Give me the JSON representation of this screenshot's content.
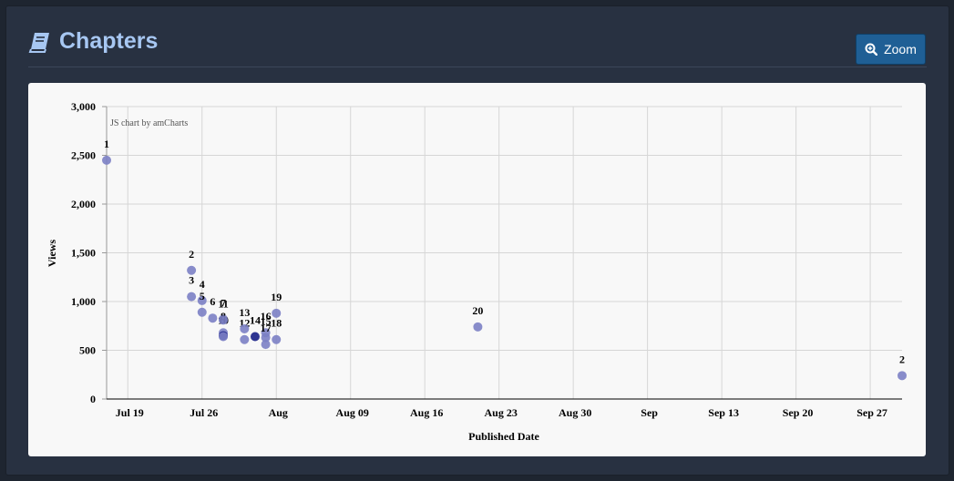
{
  "header": {
    "title": "Chapters",
    "icon": "book-icon"
  },
  "toolbar": {
    "zoom_label": "Zoom",
    "zoom_icon": "zoom-in-icon"
  },
  "chart_data": {
    "type": "scatter",
    "title": "",
    "credit": "JS chart by amCharts",
    "xlabel": "Published Date",
    "ylabel": "Views",
    "x_range": [
      "2014-07-17",
      "2014-09-30"
    ],
    "ylim": [
      0,
      3000
    ],
    "yticks": [
      {
        "value": 0,
        "label": "0"
      },
      {
        "value": 500,
        "label": "500"
      },
      {
        "value": 1000,
        "label": "1,000"
      },
      {
        "value": 1500,
        "label": "1,500"
      },
      {
        "value": 2000,
        "label": "2,000"
      },
      {
        "value": 2500,
        "label": "2,500"
      },
      {
        "value": 3000,
        "label": "3,000"
      }
    ],
    "xticks": [
      {
        "date": "2014-07-19",
        "label": "Jul 19"
      },
      {
        "date": "2014-07-26",
        "label": "Jul 26"
      },
      {
        "date": "2014-08-02",
        "label": "Aug"
      },
      {
        "date": "2014-08-09",
        "label": "Aug 09"
      },
      {
        "date": "2014-08-16",
        "label": "Aug 16"
      },
      {
        "date": "2014-08-23",
        "label": "Aug 23"
      },
      {
        "date": "2014-08-30",
        "label": "Aug 30"
      },
      {
        "date": "2014-09-06",
        "label": "Sep"
      },
      {
        "date": "2014-09-13",
        "label": "Sep 13"
      },
      {
        "date": "2014-09-20",
        "label": "Sep 20"
      },
      {
        "date": "2014-09-27",
        "label": "Sep 27"
      }
    ],
    "grid": true,
    "point_color": "#7b7fc4",
    "highlight_color": "#232a8c",
    "points": [
      {
        "label": "1",
        "date": "2014-07-17",
        "y": 2450,
        "highlight": false
      },
      {
        "label": "2",
        "date": "2014-07-25",
        "y": 1320,
        "highlight": false
      },
      {
        "label": "3",
        "date": "2014-07-25",
        "y": 1050,
        "highlight": false
      },
      {
        "label": "4",
        "date": "2014-07-26",
        "y": 1010,
        "highlight": false
      },
      {
        "label": "5",
        "date": "2014-07-26",
        "y": 890,
        "highlight": false
      },
      {
        "label": "6",
        "date": "2014-07-27",
        "y": 830,
        "highlight": false
      },
      {
        "label": "7",
        "date": "2014-07-28",
        "y": 820,
        "highlight": false
      },
      {
        "label": "8",
        "date": "2014-07-28",
        "y": 680,
        "highlight": false
      },
      {
        "label": "9",
        "date": "2014-07-28",
        "y": 650,
        "highlight": true
      },
      {
        "label": "10",
        "date": "2014-07-28",
        "y": 640,
        "highlight": false
      },
      {
        "label": "11",
        "date": "2014-07-28",
        "y": 810,
        "highlight": false
      },
      {
        "label": "12",
        "date": "2014-07-30",
        "y": 610,
        "highlight": false
      },
      {
        "label": "13",
        "date": "2014-07-30",
        "y": 720,
        "highlight": false
      },
      {
        "label": "14",
        "date": "2014-07-31",
        "y": 640,
        "highlight": true
      },
      {
        "label": "15",
        "date": "2014-08-01",
        "y": 630,
        "highlight": false
      },
      {
        "label": "16",
        "date": "2014-08-01",
        "y": 680,
        "highlight": false
      },
      {
        "label": "17",
        "date": "2014-08-01",
        "y": 560,
        "highlight": false
      },
      {
        "label": "18",
        "date": "2014-08-02",
        "y": 610,
        "highlight": false
      },
      {
        "label": "19",
        "date": "2014-08-02",
        "y": 880,
        "highlight": false
      },
      {
        "label": "20",
        "date": "2014-08-21",
        "y": 740,
        "highlight": false
      },
      {
        "label": "2",
        "date": "2014-09-30",
        "y": 240,
        "highlight": false
      }
    ]
  }
}
